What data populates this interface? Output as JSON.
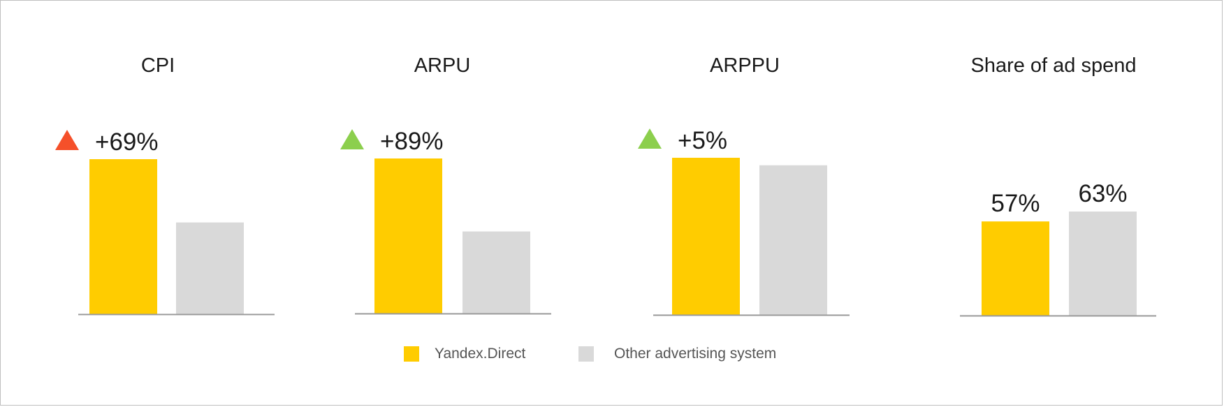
{
  "chart_data": [
    {
      "type": "bar",
      "title": "CPI",
      "change_label": "+69%",
      "change_direction": "up",
      "change_color": "#f5502a",
      "series": [
        {
          "name": "Yandex.Direct",
          "value": 169
        },
        {
          "name": "Other advertising system",
          "value": 100
        }
      ]
    },
    {
      "type": "bar",
      "title": "ARPU",
      "change_label": "+89%",
      "change_direction": "up",
      "change_color": "#8ccf4d",
      "series": [
        {
          "name": "Yandex.Direct",
          "value": 189
        },
        {
          "name": "Other advertising system",
          "value": 100
        }
      ]
    },
    {
      "type": "bar",
      "title": "ARPPU",
      "change_label": "+5%",
      "change_direction": "up",
      "change_color": "#8ccf4d",
      "series": [
        {
          "name": "Yandex.Direct",
          "value": 105
        },
        {
          "name": "Other advertising system",
          "value": 100
        }
      ]
    },
    {
      "type": "bar",
      "title": "Share of ad spend",
      "series": [
        {
          "name": "Yandex.Direct",
          "value": 57,
          "label": "57%"
        },
        {
          "name": "Other advertising system",
          "value": 63,
          "label": "63%"
        }
      ]
    }
  ],
  "legend": {
    "items": [
      {
        "label": "Yandex.Direct",
        "color": "#ffcc00"
      },
      {
        "label": "Other advertising system",
        "color": "#d9d9d9"
      }
    ]
  },
  "colors": {
    "primary": "#ffcc00",
    "secondary": "#d9d9d9",
    "axis": "#9a9a9a",
    "text": "#1a1a1a"
  }
}
